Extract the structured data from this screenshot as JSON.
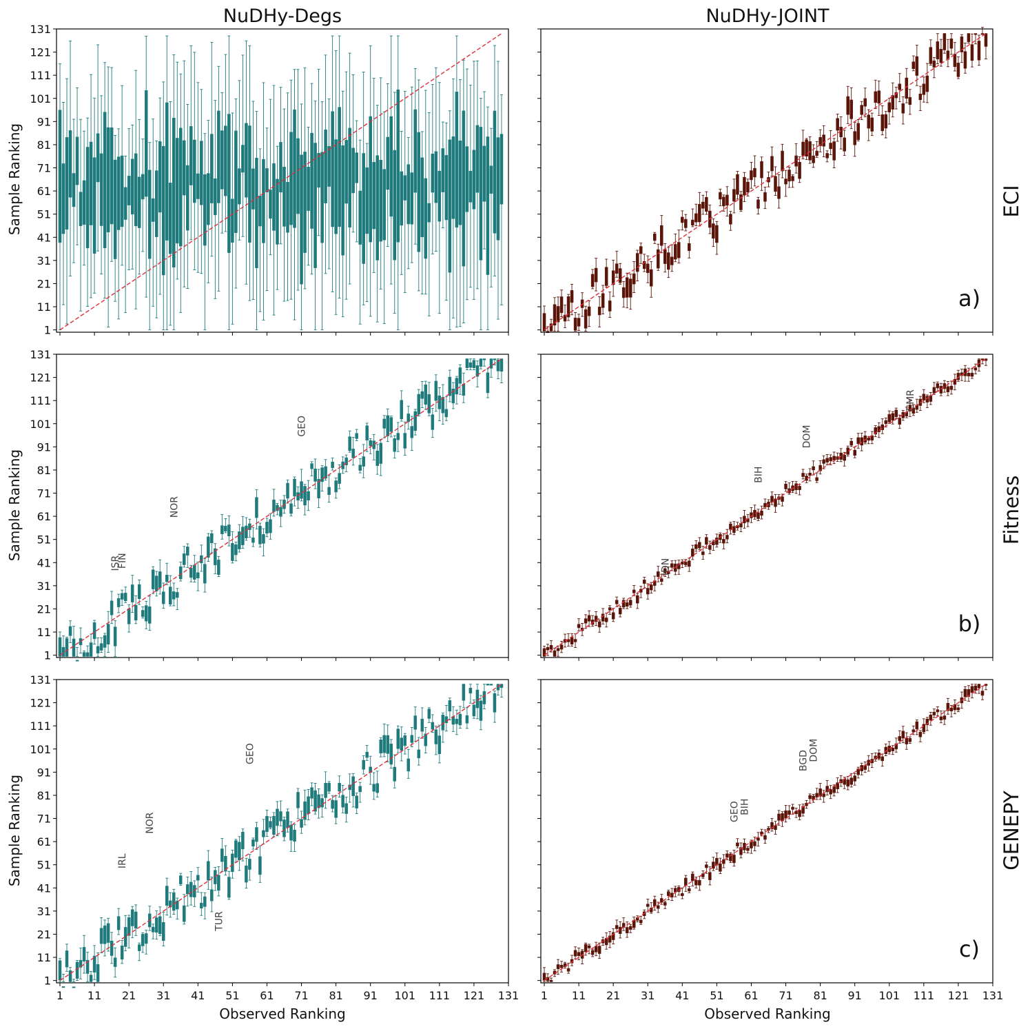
{
  "columns": [
    "NuDHy-Degs",
    "NuDHy-JOINT"
  ],
  "rows": [
    "ECI",
    "Fitness",
    "GENEPY"
  ],
  "panel_labels": [
    "a)",
    "b)",
    "c)"
  ],
  "xlabel": "Observed Ranking",
  "ylabel": "Sample Ranking",
  "ticks": [
    "1",
    "11",
    "21",
    "31",
    "41",
    "51",
    "61",
    "71",
    "81",
    "91",
    "101",
    "111",
    "121",
    "131"
  ],
  "colors": {
    "Degs": "#1f7a7c",
    "JOINT": "#5a1408",
    "diagonal": "#e0303c"
  },
  "chart_data": [
    {
      "type": "box",
      "row": "ECI",
      "column": "NuDHy-Degs",
      "panel": "a)",
      "n_countries": 129,
      "xlim": [
        0,
        131
      ],
      "ylim": [
        0,
        131
      ],
      "spread": "wide",
      "median_range": [
        45,
        75
      ],
      "annotations": []
    },
    {
      "type": "box",
      "row": "ECI",
      "column": "NuDHy-JOINT",
      "panel": "a)",
      "n_countries": 129,
      "xlim": [
        0,
        131
      ],
      "ylim": [
        0,
        131
      ],
      "spread": "moderate",
      "annotations": []
    },
    {
      "type": "box",
      "row": "Fitness",
      "column": "NuDHy-Degs",
      "panel": "b)",
      "n_countries": 129,
      "xlim": [
        0,
        131
      ],
      "ylim": [
        0,
        131
      ],
      "spread": "moderate",
      "annotations": [
        {
          "label": "ISR",
          "x": 18,
          "y": 35
        },
        {
          "label": "FIN",
          "x": 20,
          "y": 36
        },
        {
          "label": "NOR",
          "x": 35,
          "y": 58
        },
        {
          "label": "GEO",
          "x": 72,
          "y": 93
        }
      ]
    },
    {
      "type": "box",
      "row": "Fitness",
      "column": "NuDHy-JOINT",
      "panel": "b)",
      "n_countries": 129,
      "xlim": [
        0,
        131
      ],
      "ylim": [
        0,
        131
      ],
      "spread": "tight",
      "annotations": [
        {
          "label": "IDN",
          "x": 37,
          "y": 33
        },
        {
          "label": "BIH",
          "x": 64,
          "y": 73
        },
        {
          "label": "DOM",
          "x": 78,
          "y": 88
        },
        {
          "label": "CMR",
          "x": 108,
          "y": 104
        }
      ]
    },
    {
      "type": "box",
      "row": "GENEPY",
      "column": "NuDHy-Degs",
      "panel": "c)",
      "n_countries": 129,
      "xlim": [
        0,
        131
      ],
      "ylim": [
        0,
        131
      ],
      "spread": "moderate",
      "annotations": [
        {
          "label": "IRL",
          "x": 20,
          "y": 47
        },
        {
          "label": "NOR",
          "x": 28,
          "y": 62
        },
        {
          "label": "TUR",
          "x": 48,
          "y": 20
        },
        {
          "label": "GEO",
          "x": 57,
          "y": 92
        }
      ]
    },
    {
      "type": "box",
      "row": "GENEPY",
      "column": "NuDHy-JOINT",
      "panel": "c)",
      "n_countries": 129,
      "xlim": [
        0,
        131
      ],
      "ylim": [
        0,
        131
      ],
      "spread": "tight",
      "annotations": [
        {
          "label": "GEO",
          "x": 57,
          "y": 67
        },
        {
          "label": "BIH",
          "x": 60,
          "y": 70
        },
        {
          "label": "BGD",
          "x": 77,
          "y": 89
        },
        {
          "label": "DOM",
          "x": 80,
          "y": 93
        }
      ]
    }
  ]
}
